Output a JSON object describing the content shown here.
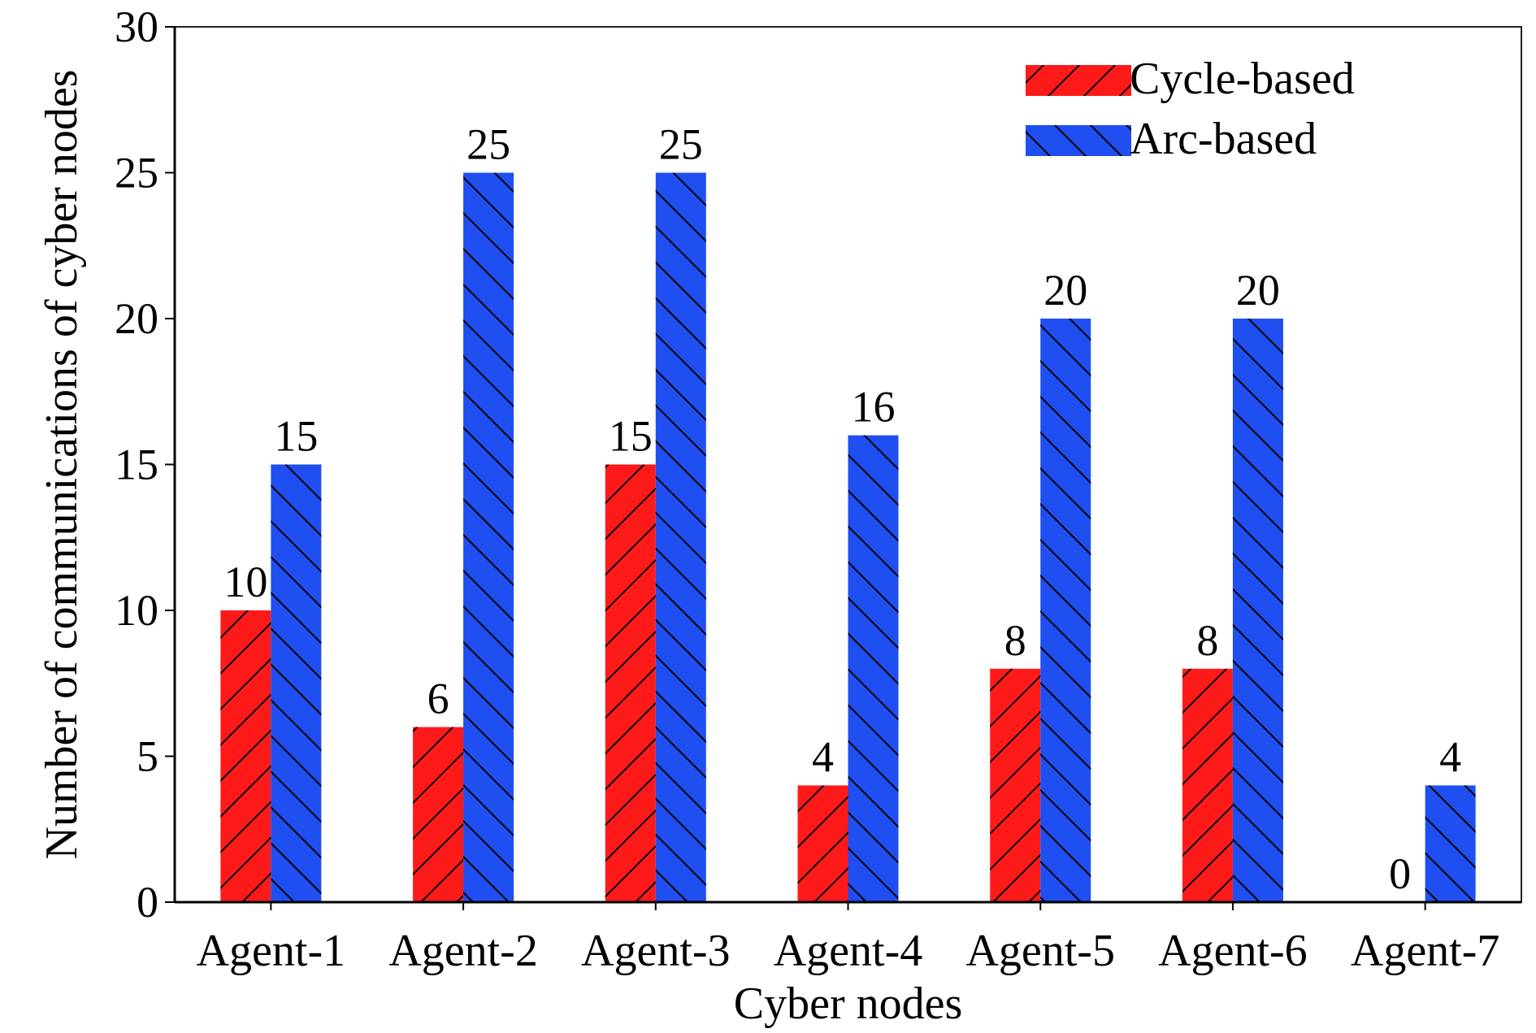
{
  "chart_data": {
    "type": "bar",
    "title": "",
    "xlabel": "Cyber nodes",
    "ylabel": "Number of communications of cyber nodes",
    "categories": [
      "Agent-1",
      "Agent-2",
      "Agent-3",
      "Agent-4",
      "Agent-5",
      "Agent-6",
      "Agent-7"
    ],
    "series": [
      {
        "name": "Cycle-based",
        "values": [
          10,
          6,
          15,
          4,
          8,
          8,
          0
        ],
        "color": "#ff1a1a",
        "hatch": "forward-diagonal"
      },
      {
        "name": "Arc-based",
        "values": [
          15,
          25,
          25,
          16,
          20,
          20,
          4
        ],
        "color": "#1f4ff0",
        "hatch": "back-diagonal"
      }
    ],
    "ylim": [
      0,
      30
    ],
    "yticks": [
      0,
      5,
      10,
      15,
      20,
      25,
      30
    ],
    "grid": false,
    "legend_position": "top-right",
    "data_labels": true
  }
}
